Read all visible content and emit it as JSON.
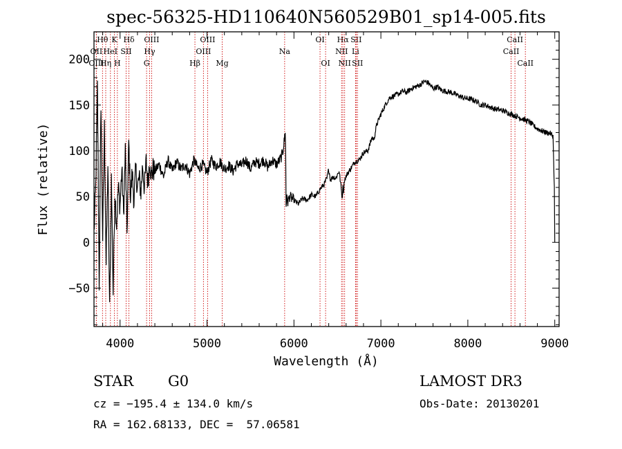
{
  "chart_data": {
    "type": "line",
    "title": "spec-56325-HD110640N560529B01_sp14-005.fits",
    "xlabel": "Wavelength (Å)",
    "ylabel": "Flux (relative)",
    "xlim": [
      3700,
      9050
    ],
    "ylim": [
      -92,
      230
    ],
    "xticks": [
      4000,
      5000,
      6000,
      7000,
      8000,
      9000
    ],
    "yticks": [
      -50,
      0,
      50,
      100,
      150,
      200
    ],
    "grid": false,
    "series": [
      {
        "name": "flux",
        "x": [
          3700,
          3720,
          3740,
          3760,
          3780,
          3800,
          3820,
          3840,
          3860,
          3880,
          3900,
          3920,
          3940,
          3960,
          3980,
          4000,
          4020,
          4040,
          4060,
          4080,
          4100,
          4120,
          4140,
          4160,
          4180,
          4200,
          4220,
          4240,
          4260,
          4280,
          4300,
          4320,
          4340,
          4360,
          4380,
          4400,
          4450,
          4500,
          4550,
          4600,
          4650,
          4700,
          4750,
          4800,
          4850,
          4900,
          4950,
          5000,
          5050,
          5100,
          5150,
          5200,
          5250,
          5300,
          5350,
          5400,
          5450,
          5500,
          5550,
          5600,
          5650,
          5700,
          5750,
          5800,
          5850,
          5870,
          5880,
          5890,
          5895,
          5900,
          5905,
          5910,
          5915,
          5930,
          5950,
          6000,
          6050,
          6100,
          6150,
          6200,
          6250,
          6300,
          6350,
          6380,
          6400,
          6420,
          6450,
          6480,
          6500,
          6520,
          6540,
          6555,
          6562,
          6570,
          6580,
          6600,
          6620,
          6650,
          6700,
          6750,
          6800,
          6850,
          6900,
          6920,
          6950,
          7000,
          7050,
          7100,
          7150,
          7200,
          7250,
          7300,
          7350,
          7400,
          7450,
          7500,
          7550,
          7600,
          7650,
          7700,
          7750,
          7800,
          7850,
          7900,
          7950,
          8000,
          8050,
          8100,
          8150,
          8200,
          8250,
          8300,
          8350,
          8400,
          8450,
          8500,
          8550,
          8600,
          8650,
          8700,
          8750,
          8800,
          8850,
          8900,
          8950,
          8980,
          8995,
          9000
        ],
        "values": [
          10,
          60,
          170,
          -45,
          155,
          5,
          125,
          -25,
          85,
          -75,
          70,
          -55,
          55,
          20,
          60,
          40,
          80,
          30,
          100,
          10,
          110,
          50,
          75,
          45,
          80,
          60,
          70,
          55,
          85,
          58,
          88,
          65,
          90,
          72,
          80,
          78,
          85,
          72,
          90,
          78,
          88,
          80,
          85,
          75,
          90,
          80,
          85,
          76,
          90,
          83,
          88,
          80,
          84,
          78,
          86,
          84,
          90,
          80,
          88,
          86,
          90,
          82,
          90,
          85,
          92,
          98,
          105,
          112,
          120,
          118,
          95,
          40,
          48,
          44,
          50,
          46,
          42,
          48,
          46,
          52,
          50,
          58,
          64,
          70,
          80,
          68,
          72,
          70,
          74,
          78,
          62,
          48,
          60,
          55,
          68,
          72,
          76,
          80,
          88,
          90,
          98,
          100,
          115,
          112,
          128,
          140,
          150,
          158,
          160,
          162,
          165,
          164,
          168,
          170,
          172,
          176,
          174,
          168,
          170,
          166,
          165,
          164,
          162,
          160,
          158,
          157,
          156,
          154,
          150,
          150,
          148,
          146,
          145,
          144,
          142,
          140,
          138,
          136,
          134,
          132,
          128,
          124,
          122,
          120,
          119,
          116,
          60,
          0
        ]
      }
    ],
    "lines": [
      {
        "name": "Hθ",
        "wl": 3798,
        "row": 1
      },
      {
        "name": "K",
        "wl": 3934,
        "row": 1
      },
      {
        "name": "Hδ",
        "wl": 4102,
        "row": 1
      },
      {
        "name": "OIII",
        "wl": 4363,
        "row": 1
      },
      {
        "name": "OIII",
        "wl": 5007,
        "row": 1
      },
      {
        "name": "OI",
        "wl": 6300,
        "row": 1
      },
      {
        "name": "Hα",
        "wl": 6563,
        "row": 1
      },
      {
        "name": "SII",
        "wl": 6716,
        "row": 1
      },
      {
        "name": "CaII",
        "wl": 8542,
        "row": 1
      },
      {
        "name": "OII",
        "wl": 3727,
        "row": 2
      },
      {
        "name": "HeI",
        "wl": 3889,
        "row": 2
      },
      {
        "name": "SII",
        "wl": 4070,
        "row": 2
      },
      {
        "name": "Hγ",
        "wl": 4340,
        "row": 2
      },
      {
        "name": "OIII",
        "wl": 4959,
        "row": 2
      },
      {
        "name": "Na",
        "wl": 5893,
        "row": 2
      },
      {
        "name": "NII",
        "wl": 6548,
        "row": 2
      },
      {
        "name": "Li",
        "wl": 6708,
        "row": 2
      },
      {
        "name": "CaII",
        "wl": 8498,
        "row": 2
      },
      {
        "name": "OIII",
        "wl": 3727,
        "row": 3
      },
      {
        "name": "Hη",
        "wl": 3835,
        "row": 3
      },
      {
        "name": "H",
        "wl": 3969,
        "row": 3
      },
      {
        "name": "G",
        "wl": 4305,
        "row": 3
      },
      {
        "name": "Hβ",
        "wl": 4861,
        "row": 3
      },
      {
        "name": "Mg",
        "wl": 5175,
        "row": 3
      },
      {
        "name": "OI",
        "wl": 6364,
        "row": 3
      },
      {
        "name": "NII",
        "wl": 6583,
        "row": 3
      },
      {
        "name": "SII",
        "wl": 6731,
        "row": 3
      },
      {
        "name": "CaII",
        "wl": 8662,
        "row": 3
      }
    ]
  },
  "info": {
    "object_class": "STAR",
    "subclass": "G0",
    "survey": "LAMOST DR3",
    "cz": "cz = −195.4 ± 134.0 km/s",
    "obs_date": "Obs-Date: 20130201",
    "coords": "RA = 162.68133, DEC =  57.06581"
  }
}
